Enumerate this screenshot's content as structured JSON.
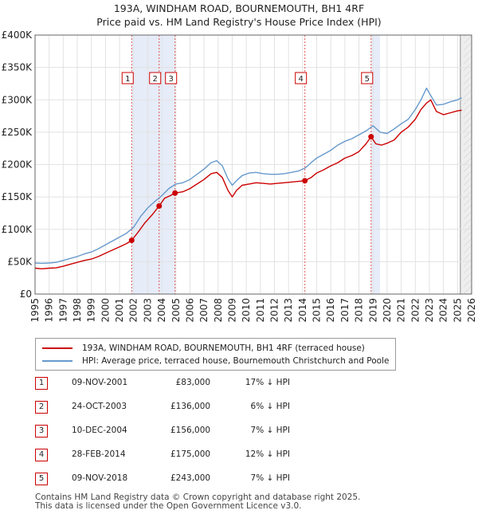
{
  "chart_data": {
    "type": "line",
    "title": "193A, WINDHAM ROAD, BOURNEMOUTH, BH1 4RF",
    "subtitle": "Price paid vs. HM Land Registry's House Price Index (HPI)",
    "xlim": [
      1995,
      2026
    ],
    "ylim": [
      0,
      400000
    ],
    "y_ticks": [
      0,
      50000,
      100000,
      150000,
      200000,
      250000,
      300000,
      350000,
      400000
    ],
    "y_tick_labels": [
      "£0",
      "£50K",
      "£100K",
      "£150K",
      "£200K",
      "£250K",
      "£300K",
      "£350K",
      "£400K"
    ],
    "x_ticks": [
      1995,
      1996,
      1997,
      1998,
      1999,
      2000,
      2001,
      2002,
      2003,
      2004,
      2005,
      2006,
      2007,
      2008,
      2009,
      2010,
      2011,
      2012,
      2013,
      2014,
      2015,
      2016,
      2017,
      2018,
      2019,
      2020,
      2021,
      2022,
      2023,
      2024,
      2025,
      2026
    ],
    "x_tick_labels": [
      "1995",
      "1996",
      "1997",
      "1998",
      "1999",
      "2000",
      "2001",
      "2002",
      "2003",
      "2004",
      "2005",
      "2006",
      "2007",
      "2008",
      "2009",
      "2010",
      "2011",
      "2012",
      "2013",
      "2014",
      "2015",
      "2016",
      "2017",
      "2018",
      "2019",
      "2020",
      "2021",
      "2022",
      "2023",
      "2024",
      "2025",
      "2026"
    ],
    "grid": true,
    "future_shade_from": 2025.2,
    "highlight_bands": [
      [
        2001.86,
        2003.81
      ],
      [
        2003.81,
        2004.94
      ],
      [
        2014.16,
        2014.16
      ],
      [
        2018.86,
        2019.5
      ]
    ],
    "series": [
      {
        "name": "193A, WINDHAM ROAD, BOURNEMOUTH, BH1 4RF (terraced house)",
        "color": "#cc0000",
        "x": [
          1995.0,
          1995.5,
          1996.0,
          1996.5,
          1997.0,
          1997.5,
          1998.0,
          1998.5,
          1999.0,
          1999.5,
          2000.0,
          2000.5,
          2001.0,
          2001.5,
          2001.86,
          2002.3,
          2002.8,
          2003.3,
          2003.81,
          2004.2,
          2004.6,
          2004.94,
          2005.5,
          2006.0,
          2006.5,
          2007.0,
          2007.5,
          2007.9,
          2008.3,
          2008.7,
          2009.0,
          2009.3,
          2009.7,
          2010.2,
          2010.7,
          2011.2,
          2011.7,
          2012.2,
          2012.7,
          2013.2,
          2013.7,
          2014.16,
          2014.6,
          2015.0,
          2015.5,
          2016.0,
          2016.5,
          2017.0,
          2017.5,
          2018.0,
          2018.5,
          2018.86,
          2019.2,
          2019.6,
          2020.0,
          2020.5,
          2021.0,
          2021.5,
          2022.0,
          2022.4,
          2022.8,
          2023.1,
          2023.5,
          2024.0,
          2024.5,
          2025.0,
          2025.3
        ],
        "y": [
          40000,
          39000,
          40000,
          40500,
          43000,
          46000,
          49000,
          52000,
          54000,
          58000,
          63000,
          68000,
          73000,
          78000,
          83000,
          95000,
          110000,
          122000,
          136000,
          148000,
          152000,
          156000,
          158000,
          163000,
          170000,
          177000,
          186000,
          188000,
          180000,
          160000,
          150000,
          160000,
          168000,
          170000,
          172000,
          171000,
          170000,
          171000,
          172000,
          173000,
          174000,
          175000,
          180000,
          187000,
          192000,
          198000,
          203000,
          210000,
          214000,
          220000,
          232000,
          243000,
          232000,
          230000,
          233000,
          238000,
          250000,
          258000,
          270000,
          285000,
          295000,
          300000,
          282000,
          277000,
          280000,
          283000,
          284000
        ]
      },
      {
        "name": "HPI: Average price, terraced house, Bournemouth Christchurch and Poole",
        "color": "#6699cc",
        "x": [
          1995.0,
          1995.5,
          1996.0,
          1996.5,
          1997.0,
          1997.5,
          1998.0,
          1998.5,
          1999.0,
          1999.5,
          2000.0,
          2000.5,
          2001.0,
          2001.5,
          2002.0,
          2002.5,
          2003.0,
          2003.5,
          2004.0,
          2004.5,
          2005.0,
          2005.5,
          2006.0,
          2006.5,
          2007.0,
          2007.5,
          2007.9,
          2008.3,
          2008.7,
          2009.0,
          2009.3,
          2009.7,
          2010.2,
          2010.7,
          2011.2,
          2011.7,
          2012.2,
          2012.7,
          2013.2,
          2013.7,
          2014.2,
          2014.6,
          2015.0,
          2015.5,
          2016.0,
          2016.5,
          2017.0,
          2017.5,
          2018.0,
          2018.5,
          2019.0,
          2019.5,
          2020.0,
          2020.5,
          2021.0,
          2021.5,
          2022.0,
          2022.4,
          2022.8,
          2023.0,
          2023.5,
          2024.0,
          2024.5,
          2025.0,
          2025.3
        ],
        "y": [
          48000,
          47500,
          48000,
          49000,
          52000,
          55000,
          58000,
          62000,
          65000,
          70000,
          76000,
          82000,
          88000,
          94000,
          103000,
          120000,
          133000,
          143000,
          152000,
          163000,
          170000,
          172000,
          177000,
          185000,
          193000,
          203000,
          206000,
          198000,
          178000,
          168000,
          175000,
          183000,
          187000,
          188000,
          186000,
          185000,
          185000,
          186000,
          188000,
          190000,
          195000,
          203000,
          210000,
          216000,
          222000,
          230000,
          236000,
          240000,
          246000,
          252000,
          260000,
          250000,
          248000,
          255000,
          263000,
          270000,
          285000,
          300000,
          318000,
          310000,
          292000,
          293000,
          297000,
          300000,
          303000
        ]
      }
    ],
    "events": [
      {
        "label": "1",
        "x": 2001.86,
        "y": 83000
      },
      {
        "label": "2",
        "x": 2003.81,
        "y": 136000
      },
      {
        "label": "3",
        "x": 2004.94,
        "y": 156000
      },
      {
        "label": "4",
        "x": 2014.16,
        "y": 175000
      },
      {
        "label": "5",
        "x": 2018.86,
        "y": 243000
      }
    ]
  },
  "legend": {
    "items": [
      {
        "label": "193A, WINDHAM ROAD, BOURNEMOUTH, BH1 4RF (terraced house)",
        "color": "#cc0000"
      },
      {
        "label": "HPI: Average price, terraced house, Bournemouth Christchurch and Poole",
        "color": "#6699cc"
      }
    ]
  },
  "sales": [
    {
      "num": "1",
      "date": "09-NOV-2001",
      "price": "£83,000",
      "hpi": "17% ↓ HPI"
    },
    {
      "num": "2",
      "date": "24-OCT-2003",
      "price": "£136,000",
      "hpi": "6% ↓ HPI"
    },
    {
      "num": "3",
      "date": "10-DEC-2004",
      "price": "£156,000",
      "hpi": "7% ↓ HPI"
    },
    {
      "num": "4",
      "date": "28-FEB-2014",
      "price": "£175,000",
      "hpi": "12% ↓ HPI"
    },
    {
      "num": "5",
      "date": "09-NOV-2018",
      "price": "£243,000",
      "hpi": "7% ↓ HPI"
    }
  ],
  "footer": {
    "line1": "Contains HM Land Registry data © Crown copyright and database right 2025.",
    "line2": "This data is licensed under the Open Government Licence v3.0."
  }
}
